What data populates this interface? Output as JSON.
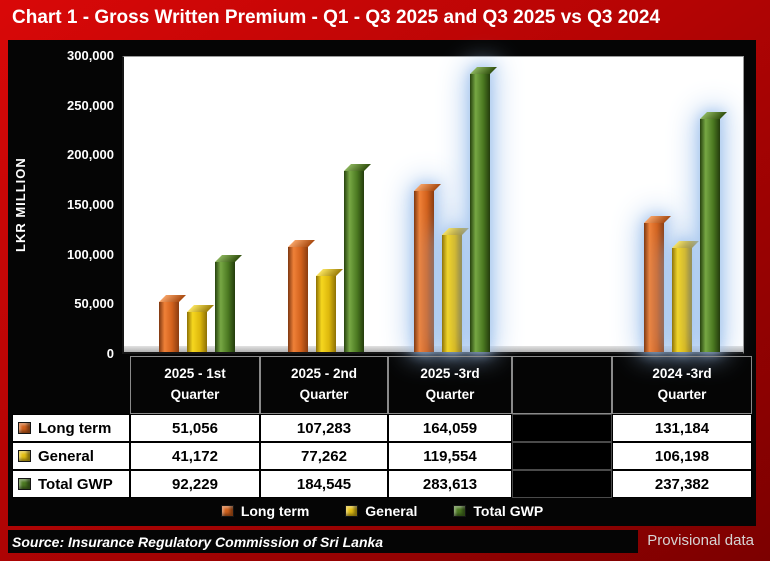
{
  "title": "Chart 1 - Gross Written Premium - Q1 - Q3 2025 and Q3 2025 vs Q3 2024",
  "chart_data": {
    "type": "bar",
    "title": "Chart 1 - Gross Written Premium - Q1 - Q3 2025 and Q3 2025 vs Q3 2024",
    "ylabel": "LKR MILLION",
    "ylim": [
      0,
      300000
    ],
    "yticks": [
      "300,000",
      "250,000",
      "200,000",
      "150,000",
      "100,000",
      "50,000",
      "0"
    ],
    "categories": [
      "2025 - 1st Quarter",
      "2025 - 2nd Quarter",
      "2025 -3rd Quarter",
      "2024 -3rd Quarter"
    ],
    "series": [
      {
        "name": "Long term",
        "color": "#d2611c",
        "values": [
          51056,
          107283,
          164059,
          131184
        ],
        "labels": [
          "51,056",
          "107,283",
          "164,059",
          "131,184"
        ]
      },
      {
        "name": "General",
        "color": "#e5c014",
        "values": [
          41172,
          77262,
          119554,
          106198
        ],
        "labels": [
          "41,172",
          "77,262",
          "119,554",
          "106,198"
        ]
      },
      {
        "name": "Total GWP",
        "color": "#4c7a22",
        "values": [
          92229,
          184545,
          283613,
          237382
        ],
        "labels": [
          "92,229",
          "184,545",
          "283,613",
          "237,382"
        ]
      }
    ],
    "highlighted_groups": [
      2,
      3
    ],
    "legend_position": "bottom",
    "grid": false
  },
  "footer": {
    "source": "Source: Insurance Regulatory Commission of Sri Lanka",
    "note": "Provisional data"
  }
}
